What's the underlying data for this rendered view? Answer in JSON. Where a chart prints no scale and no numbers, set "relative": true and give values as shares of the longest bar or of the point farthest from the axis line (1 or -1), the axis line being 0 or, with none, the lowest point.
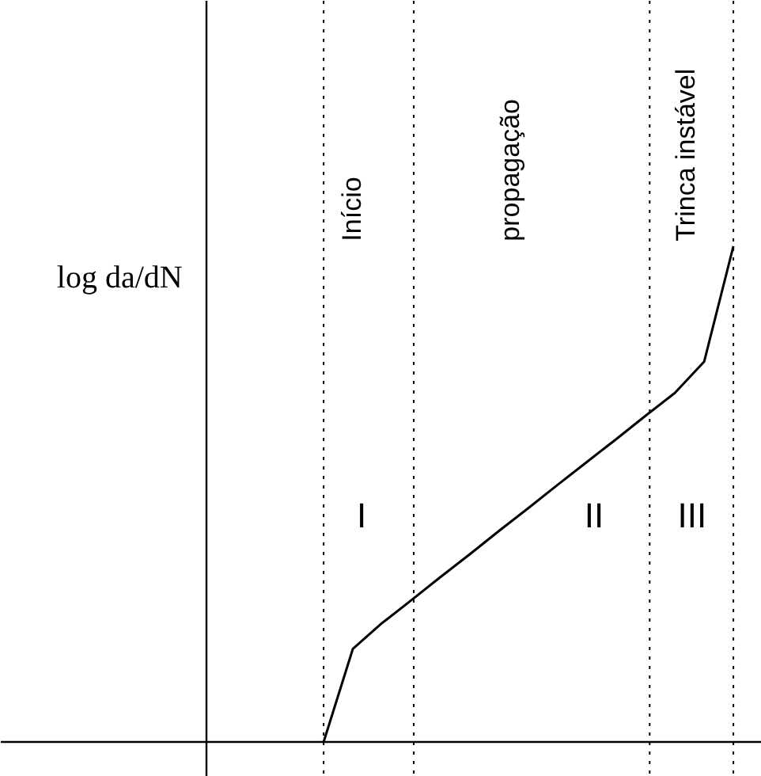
{
  "chart_data": {
    "type": "line",
    "relative": true,
    "ylabel": "log da/dN",
    "categories": [
      null,
      null,
      null,
      null,
      null,
      null,
      null,
      null,
      null,
      null,
      null,
      null,
      null,
      null,
      null
    ],
    "series": [
      {
        "color": "#000000",
        "values": [
          0,
          0.188,
          0.24,
          0.286,
          0.333,
          0.379,
          0.426,
          0.472,
          0.519,
          0.565,
          0.611,
          0.658,
          0.704,
          0.767,
          1.0
        ]
      }
    ],
    "marker": "none",
    "line_style": "solid",
    "grid": "x",
    "annotations": [
      "Início",
      "propagação",
      "Trinca instável",
      "I",
      "II",
      "III"
    ]
  }
}
